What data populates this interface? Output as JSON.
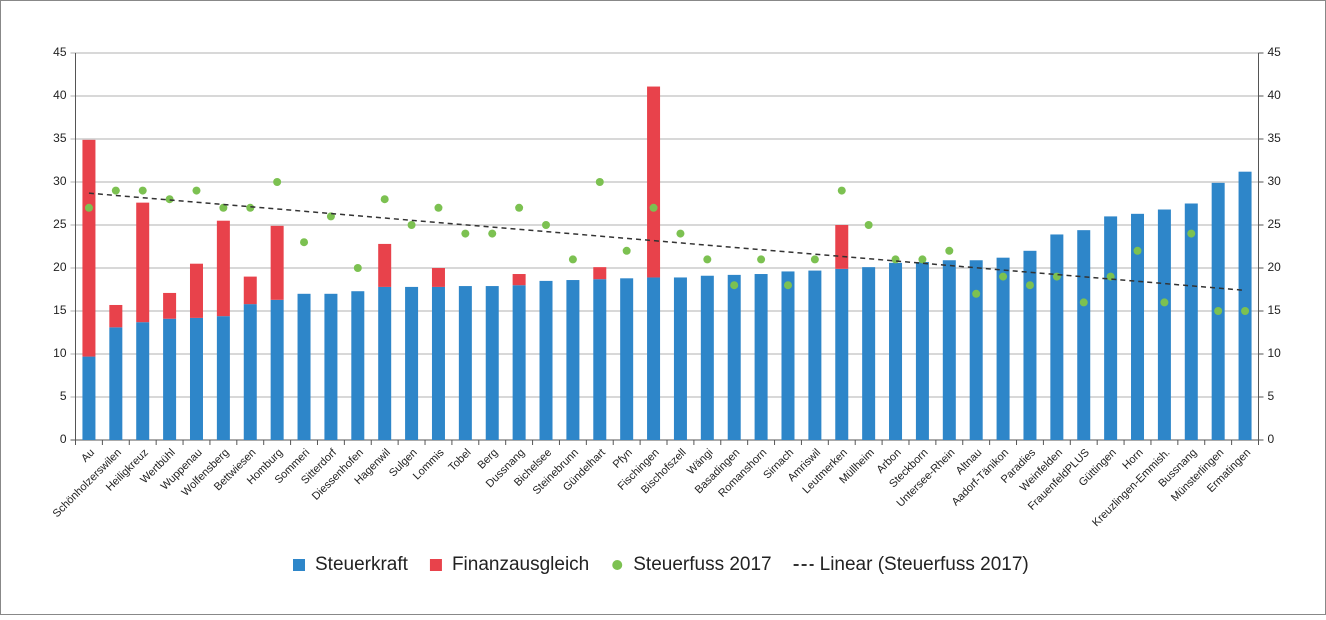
{
  "chart_data": {
    "type": "bar",
    "categories": [
      "Au",
      "Schönholzerswilen",
      "Heiligkreuz",
      "Wertbühl",
      "Wuppenau",
      "Wolfensberg",
      "Bettwiesen",
      "Homburg",
      "Sommeri",
      "Sitterdorf",
      "Diessenhofen",
      "Hagenwil",
      "Sulgen",
      "Lommis",
      "Tobel",
      "Berg",
      "Dussnang",
      "Bichelsee",
      "Steinebrunn",
      "Gündelhart",
      "Pfyn",
      "Fischingen",
      "Bischofszell",
      "Wängi",
      "Basadingen",
      "Romanshorn",
      "Sirnach",
      "Amriswil",
      "Leutmerken",
      "Müllheim",
      "Arbon",
      "Steckborn",
      "Untersee-Rhein",
      "Altnau",
      "Aadorf-Tänikon",
      "Paradies",
      "Weinfelden",
      "FrauenfeldPLUS",
      "Güttingen",
      "Horn",
      "Kreuzlingen-Emmish.",
      "Bussnang",
      "Münsterlingen",
      "Ermatingen"
    ],
    "series": [
      {
        "name": "Steuerkraft",
        "kind": "bar",
        "color": "#2e86c9",
        "values": [
          9.7,
          13.1,
          13.7,
          14.1,
          14.2,
          14.4,
          15.8,
          16.3,
          17.0,
          17.0,
          17.3,
          17.8,
          17.8,
          17.8,
          17.9,
          17.9,
          18.0,
          18.5,
          18.6,
          18.7,
          18.8,
          18.9,
          18.9,
          19.1,
          19.2,
          19.3,
          19.6,
          19.7,
          19.9,
          20.1,
          20.6,
          20.7,
          20.9,
          20.9,
          21.2,
          22.0,
          23.9,
          24.4,
          26.0,
          26.3,
          26.8,
          27.5,
          29.9,
          31.2
        ]
      },
      {
        "name": "Finanzausgleich",
        "kind": "bar",
        "color": "#e8424b",
        "values": [
          25.2,
          2.6,
          13.9,
          3.0,
          6.3,
          11.1,
          3.2,
          8.6,
          0,
          0,
          0,
          5.0,
          0,
          2.2,
          0,
          0,
          1.3,
          0,
          0,
          1.4,
          0,
          22.2,
          0,
          0,
          0,
          0,
          0,
          0,
          5.1,
          0,
          0,
          0,
          0,
          0,
          0,
          0,
          0,
          0,
          0,
          0,
          0,
          0,
          0,
          0
        ]
      },
      {
        "name": "Steuerfuss 2017",
        "kind": "dot",
        "color": "#7cc151",
        "values": [
          27,
          29,
          29,
          28,
          29,
          27,
          27,
          30,
          23,
          26,
          20,
          28,
          25,
          27,
          24,
          24,
          27,
          25,
          21,
          30,
          22,
          27,
          24,
          21,
          18,
          21,
          18,
          21,
          29,
          25,
          21,
          21,
          22,
          17,
          19,
          18,
          19,
          16,
          19,
          22,
          16,
          24,
          15,
          15
        ]
      }
    ],
    "trend": {
      "name": "Linear (Steuerfuss 2017)",
      "color": "#333333",
      "start": 28.7,
      "end": 17.4
    },
    "ylim": [
      0,
      45
    ],
    "yticks": [
      0,
      5,
      10,
      15,
      20,
      25,
      30,
      35,
      40,
      45
    ],
    "y2lim": [
      0,
      45
    ],
    "y2ticks": [
      0,
      5,
      10,
      15,
      20,
      25,
      30,
      35,
      40,
      45
    ],
    "grid": true,
    "legend": "bottom"
  }
}
